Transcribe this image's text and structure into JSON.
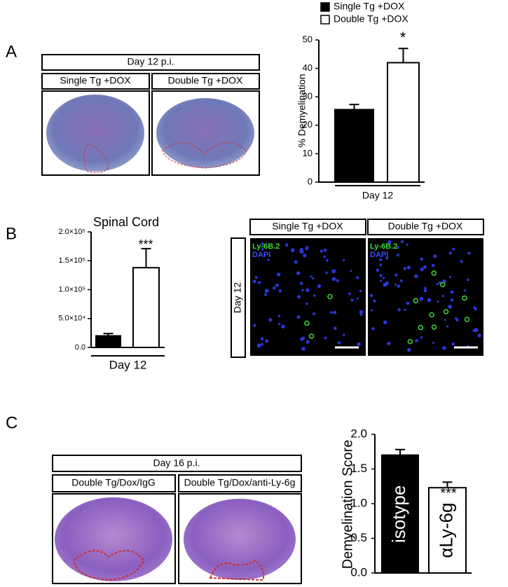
{
  "panel_labels": [
    "A",
    "B",
    "C"
  ],
  "panel_a": {
    "header": "Day 12 p.i.",
    "columns": [
      "Single Tg +DOX",
      "Double Tg +DOX"
    ]
  },
  "panel_b": {
    "columns": [
      "Single Tg +DOX",
      "Double Tg +DOX"
    ],
    "row_label": "Day 12",
    "stains": [
      "Ly-6B.2",
      "DAPI"
    ]
  },
  "panel_c": {
    "header": "Day 16 p.i.",
    "columns": [
      "Double Tg/Dox/IgG",
      "Double Tg/Dox/anti-Ly-6g"
    ]
  },
  "chart_data": [
    {
      "type": "bar",
      "y_label": "% Demyelination",
      "categories": [
        "Day 12"
      ],
      "series": [
        {
          "name": "Single Tg +DOX",
          "color": "#000000",
          "values": [
            25.5
          ],
          "errors": [
            1.8
          ]
        },
        {
          "name": "Double Tg +DOX",
          "color": "#ffffff",
          "values": [
            42
          ],
          "errors": [
            5
          ]
        }
      ],
      "ylim": [
        0,
        50
      ],
      "yticks": [
        0,
        10,
        20,
        30,
        40,
        50
      ],
      "annotation": "*",
      "legend": "top-left"
    },
    {
      "type": "bar",
      "title": "Spinal Cord",
      "categories": [
        "Day 12"
      ],
      "series": [
        {
          "color": "#000000",
          "values": [
            20000
          ],
          "errors": [
            4000
          ]
        },
        {
          "color": "#ffffff",
          "values": [
            138000
          ],
          "errors": [
            33000
          ]
        }
      ],
      "ylim": [
        0,
        200000
      ],
      "yticks": [
        {
          "value": 0,
          "label": "0.0"
        },
        {
          "value": 50000,
          "label": "5.0×10⁴"
        },
        {
          "value": 100000,
          "label": "1.0×10⁵"
        },
        {
          "value": 150000,
          "label": "1.5×10⁵"
        },
        {
          "value": 200000,
          "label": "2.0×10⁵"
        }
      ],
      "annotation": "***"
    },
    {
      "type": "bar",
      "y_label": "Demyelination Score",
      "categories": [
        "isotype",
        "αLy-6g"
      ],
      "values": [
        1.7,
        1.23
      ],
      "errors": [
        0.08,
        0.08
      ],
      "colors": [
        "#000000",
        "#ffffff"
      ],
      "ylim": [
        0,
        2
      ],
      "yticks": [
        {
          "value": 0,
          "label": "0.0"
        },
        {
          "value": 0.5,
          "label": "0.5"
        },
        {
          "value": 1,
          "label": "1.0"
        },
        {
          "value": 1.5,
          "label": "1.5"
        },
        {
          "value": 2,
          "label": "2.0"
        }
      ],
      "annotation": "***"
    }
  ]
}
